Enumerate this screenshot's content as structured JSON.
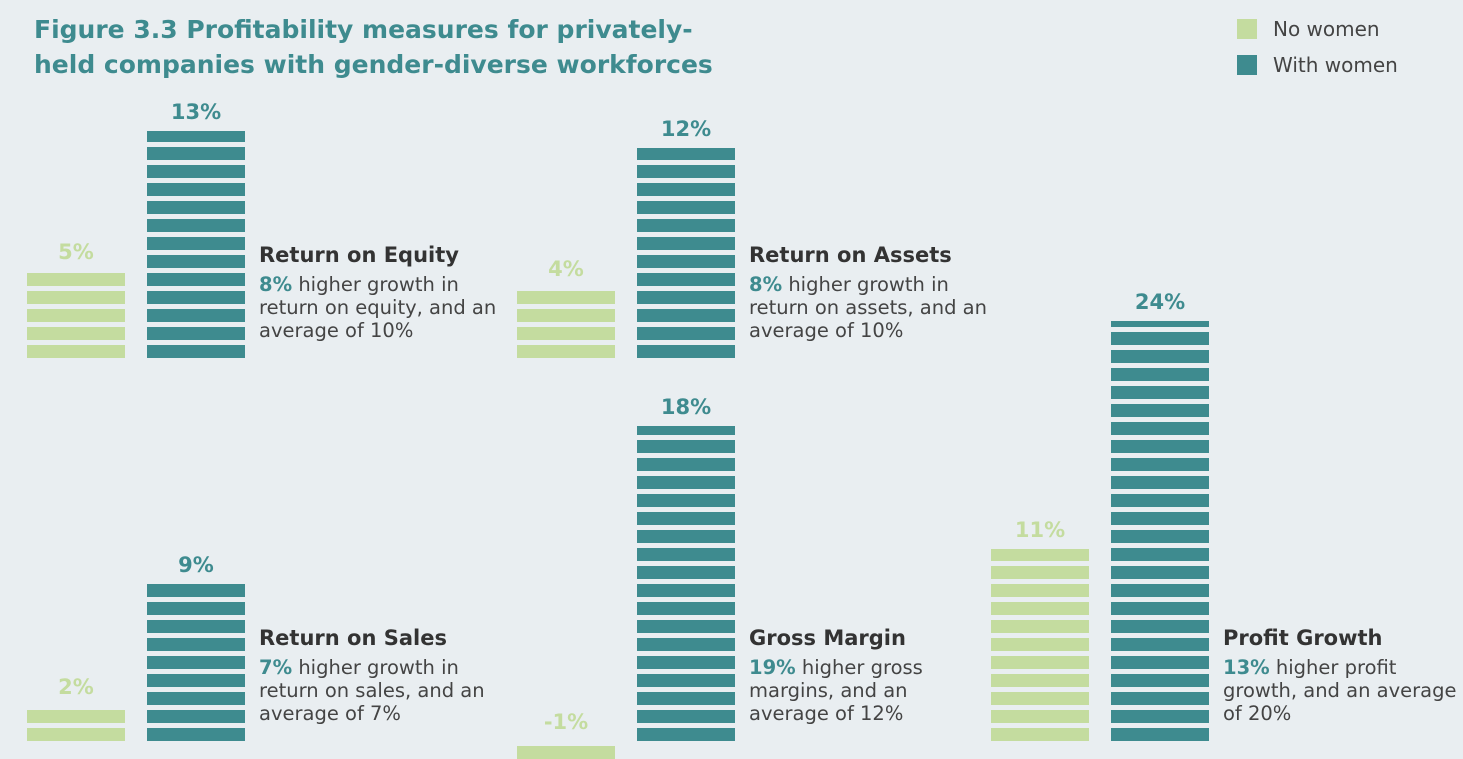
{
  "chart_data": {
    "type": "bar",
    "title": "Figure 3.3  Profitability measures for privately-held companies with gender-diverse workforces",
    "categories": [
      "Return on Equity",
      "Return on Assets",
      "Return on Sales",
      "Gross Margin",
      "Profit Growth"
    ],
    "series": [
      {
        "name": "No women",
        "color": "#c4dc9f",
        "values": [
          5,
          4,
          2,
          -1,
          11
        ],
        "value_labels": [
          "5%",
          "4%",
          "2%",
          "-1%",
          "11%"
        ]
      },
      {
        "name": "With women",
        "color": "#3e8b8f",
        "values": [
          13,
          12,
          9,
          18,
          24
        ],
        "value_labels": [
          "13%",
          "12%",
          "9%",
          "18%",
          "24%"
        ]
      }
    ],
    "descriptions": [
      {
        "highlight": "8%",
        "text": "higher growth in return on equity, and an average of 10%"
      },
      {
        "highlight": "8%",
        "text": "higher growth in return on assets, and an average of 10%"
      },
      {
        "highlight": "7%",
        "text": "higher growth in return on sales, and an average of 7%"
      },
      {
        "highlight": "19%",
        "text": "higher gross margins, and an average of 12%"
      },
      {
        "highlight": "13%",
        "text": "higher profit growth, and an average of 20%"
      }
    ]
  }
}
